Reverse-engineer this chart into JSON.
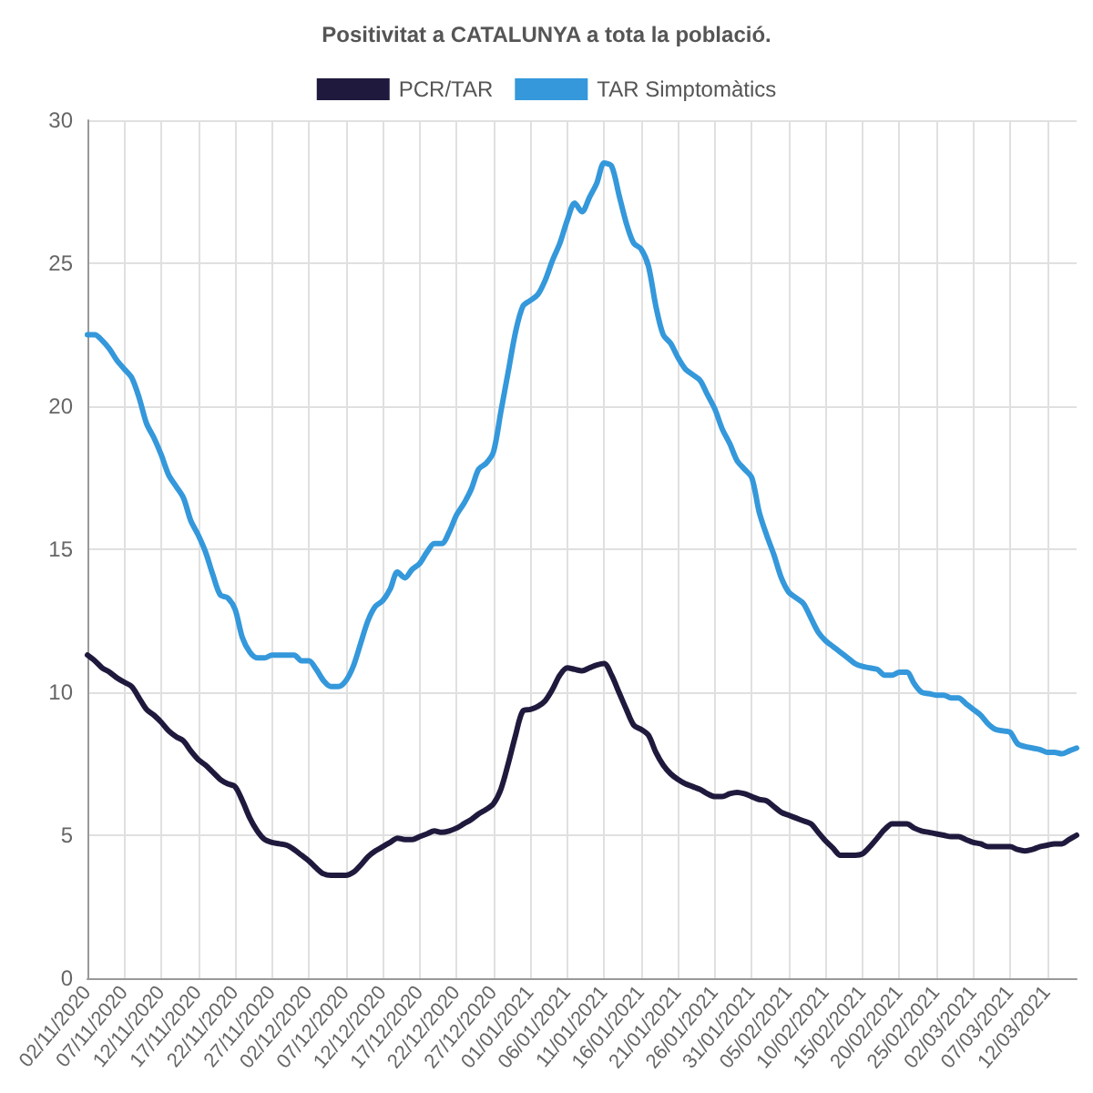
{
  "chart_data": {
    "type": "line",
    "title": "Positivitat a CATALUNYA a tota la població.",
    "categories": [
      "02/11/2020",
      null,
      null,
      null,
      null,
      "07/11/2020",
      null,
      null,
      null,
      null,
      "12/11/2020",
      null,
      null,
      null,
      null,
      "17/11/2020",
      null,
      null,
      null,
      null,
      "22/11/2020",
      null,
      null,
      null,
      null,
      "27/11/2020",
      null,
      null,
      null,
      null,
      "02/12/2020",
      null,
      null,
      null,
      null,
      "07/12/2020",
      null,
      null,
      null,
      null,
      "12/12/2020",
      null,
      null,
      null,
      null,
      "17/12/2020",
      null,
      null,
      null,
      null,
      "22/12/2020",
      null,
      null,
      null,
      null,
      "27/12/2020",
      null,
      null,
      null,
      null,
      "01/01/2021",
      null,
      null,
      null,
      null,
      "06/01/2021",
      null,
      null,
      null,
      null,
      "11/01/2021",
      null,
      null,
      null,
      null,
      "16/01/2021",
      null,
      null,
      null,
      null,
      "21/01/2021",
      null,
      null,
      null,
      null,
      "26/01/2021",
      null,
      null,
      null,
      null,
      "31/01/2021",
      null,
      null,
      null,
      null,
      "05/02/2021",
      null,
      null,
      null,
      null,
      "10/02/2021",
      null,
      null,
      null,
      null,
      "15/02/2021",
      null,
      null,
      null,
      null,
      "20/02/2021",
      null,
      null,
      null,
      null,
      "25/02/2021",
      null,
      null,
      null,
      null,
      "02/03/2021",
      null,
      null,
      null,
      null,
      "07/03/2021",
      null,
      null,
      null,
      null,
      "12/03/2021",
      null,
      null,
      null,
      null
    ],
    "series": [
      {
        "name": "PCR/TAR",
        "color": "#1f1a3d",
        "values": [
          11.3,
          11.1,
          10.85,
          10.7,
          10.5,
          10.35,
          10.2,
          9.8,
          9.4,
          9.2,
          8.95,
          8.65,
          8.45,
          8.3,
          7.95,
          7.65,
          7.45,
          7.2,
          6.95,
          6.8,
          6.7,
          6.2,
          5.6,
          5.15,
          4.85,
          4.75,
          4.7,
          4.65,
          4.5,
          4.3,
          4.1,
          3.85,
          3.65,
          3.6,
          3.6,
          3.6,
          3.7,
          3.95,
          4.25,
          4.45,
          4.6,
          4.75,
          4.9,
          4.85,
          4.85,
          4.95,
          5.05,
          5.15,
          5.1,
          5.15,
          5.25,
          5.4,
          5.55,
          5.75,
          5.9,
          6.1,
          6.6,
          7.5,
          8.5,
          9.35,
          9.4,
          9.5,
          9.7,
          10.1,
          10.6,
          10.85,
          10.8,
          10.75,
          10.85,
          10.95,
          11.0,
          10.6,
          10.0,
          9.4,
          8.85,
          8.7,
          8.5,
          7.9,
          7.45,
          7.15,
          6.95,
          6.8,
          6.7,
          6.6,
          6.45,
          6.35,
          6.35,
          6.45,
          6.5,
          6.45,
          6.35,
          6.25,
          6.2,
          6.0,
          5.8,
          5.7,
          5.6,
          5.5,
          5.4,
          5.1,
          4.8,
          4.55,
          4.3,
          4.3,
          4.3,
          4.35,
          4.6,
          4.9,
          5.2,
          5.4,
          5.4,
          5.4,
          5.25,
          5.15,
          5.1,
          5.05,
          5.0,
          4.95,
          4.95,
          4.85,
          4.75,
          4.7,
          4.6,
          4.6,
          4.6,
          4.6,
          4.5,
          4.45,
          4.5,
          4.6,
          4.65,
          4.7,
          4.7,
          4.85,
          5.0
        ]
      },
      {
        "name": "TAR Simptomàtics",
        "color": "#3498db",
        "values": [
          22.5,
          22.5,
          22.3,
          22.0,
          21.6,
          21.3,
          21.0,
          20.3,
          19.4,
          18.9,
          18.3,
          17.6,
          17.2,
          16.8,
          16.0,
          15.5,
          14.9,
          14.1,
          13.4,
          13.3,
          12.9,
          11.9,
          11.4,
          11.2,
          11.2,
          11.3,
          11.3,
          11.3,
          11.3,
          11.1,
          11.1,
          10.8,
          10.4,
          10.2,
          10.2,
          10.4,
          10.9,
          11.7,
          12.5,
          13.0,
          13.2,
          13.6,
          14.2,
          14.0,
          14.3,
          14.5,
          14.9,
          15.2,
          15.2,
          15.6,
          16.2,
          16.6,
          17.1,
          17.8,
          18.0,
          18.4,
          19.8,
          21.2,
          22.6,
          23.5,
          23.7,
          23.9,
          24.4,
          25.1,
          25.7,
          26.5,
          27.1,
          26.8,
          27.3,
          27.8,
          28.5,
          28.4,
          27.4,
          26.4,
          25.7,
          25.5,
          24.9,
          23.5,
          22.5,
          22.2,
          21.7,
          21.3,
          21.1,
          20.9,
          20.4,
          19.9,
          19.2,
          18.7,
          18.1,
          17.8,
          17.5,
          16.3,
          15.5,
          14.8,
          14.0,
          13.5,
          13.3,
          13.1,
          12.6,
          12.1,
          11.8,
          11.6,
          11.4,
          11.2,
          11.0,
          10.9,
          10.85,
          10.8,
          10.6,
          10.6,
          10.7,
          10.7,
          10.3,
          10.0,
          9.95,
          9.9,
          9.9,
          9.8,
          9.8,
          9.6,
          9.4,
          9.2,
          8.9,
          8.7,
          8.65,
          8.6,
          8.2,
          8.1,
          8.05,
          8.0,
          7.9,
          7.9,
          7.85,
          7.95,
          8.05
        ]
      }
    ],
    "ylim": [
      0,
      30
    ],
    "yticks": [
      0,
      5,
      10,
      15,
      20,
      25,
      30
    ],
    "grid": true,
    "legend": "top",
    "marker": "none",
    "line_style": "solid"
  }
}
